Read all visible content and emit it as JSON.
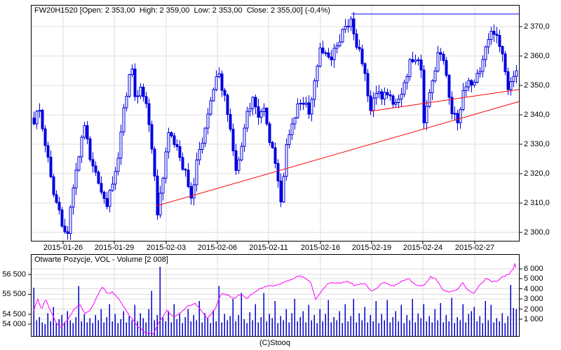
{
  "price_panel": {
    "title": "FW20H1520 [Open: 2 353,00  High: 2 359,00  Low: 2 353,00  Close: 2 355,00] (-0,4%)",
    "symbol": "FW20H1520",
    "open": "2 353,00",
    "high": "2 359,00",
    "low": "2 353,00",
    "close": "2 355,00",
    "change": "-0,4%"
  },
  "volume_panel": {
    "title": "Otwarte Pozycje, VOL - Volume [2 008]",
    "last_volume": "2 008"
  },
  "footer": {
    "copyright": "(C)Stooq"
  },
  "colors": {
    "candle": "#0000e0",
    "candle_up_fill": "#ffffff",
    "volume_bar": "#0000cc",
    "open_interest_line": "#ff00ff",
    "trendline": "#ff0000",
    "resistance": "#0000ff",
    "grid": "#dcdcdc",
    "border": "#000000",
    "background": "#ffffff"
  },
  "chart_data": [
    {
      "type": "candlestick",
      "title": "FW20H1520 intraday price",
      "legend_position": "none",
      "grid": true,
      "bar_count": 173,
      "ylim": [
        2297,
        2377
      ],
      "y_axis": {
        "side": "right",
        "labels": [
          "2 370,0",
          "2 360,0",
          "2 350,0",
          "2 340,0",
          "2 330,0",
          "2 320,0",
          "2 310,0",
          "2 300,0"
        ],
        "values": [
          2370,
          2360,
          2350,
          2340,
          2330,
          2320,
          2310,
          2300
        ]
      },
      "x_axis": {
        "labels": [
          "2015-01-26",
          "2015-01-29",
          "2015-02-03",
          "2015-02-06",
          "2015-02-11",
          "2015-02-16",
          "2015-02-19",
          "2015-02-24",
          "2015-02-27"
        ],
        "tick_bars": [
          10.5,
          28.75,
          47.25,
          65.5,
          83.75,
          102.25,
          120.5,
          138.75,
          157.25
        ]
      },
      "close_anchors": [
        [
          0,
          2337
        ],
        [
          2,
          2343
        ],
        [
          4,
          2330
        ],
        [
          6,
          2318
        ],
        [
          8,
          2310
        ],
        [
          10,
          2302
        ],
        [
          12,
          2299
        ],
        [
          14,
          2315
        ],
        [
          16,
          2326
        ],
        [
          18,
          2337
        ],
        [
          20,
          2325
        ],
        [
          22,
          2320
        ],
        [
          24,
          2312
        ],
        [
          26,
          2308
        ],
        [
          28,
          2318
        ],
        [
          30,
          2325
        ],
        [
          32,
          2343
        ],
        [
          34,
          2352
        ],
        [
          35,
          2355
        ],
        [
          36,
          2346
        ],
        [
          38,
          2350
        ],
        [
          40,
          2344
        ],
        [
          42,
          2330
        ],
        [
          44,
          2306
        ],
        [
          46,
          2320
        ],
        [
          48,
          2335
        ],
        [
          50,
          2330
        ],
        [
          52,
          2325
        ],
        [
          54,
          2320
        ],
        [
          56,
          2310
        ],
        [
          58,
          2325
        ],
        [
          60,
          2331
        ],
        [
          62,
          2340
        ],
        [
          64,
          2350
        ],
        [
          66,
          2353
        ],
        [
          68,
          2345
        ],
        [
          70,
          2335
        ],
        [
          72,
          2320
        ],
        [
          74,
          2328
        ],
        [
          76,
          2340
        ],
        [
          78,
          2347
        ],
        [
          80,
          2338
        ],
        [
          82,
          2341
        ],
        [
          84,
          2332
        ],
        [
          86,
          2325
        ],
        [
          88,
          2310
        ],
        [
          90,
          2330
        ],
        [
          92,
          2338
        ],
        [
          94,
          2342
        ],
        [
          96,
          2345
        ],
        [
          98,
          2340
        ],
        [
          100,
          2350
        ],
        [
          102,
          2362
        ],
        [
          104,
          2360
        ],
        [
          106,
          2358
        ],
        [
          108,
          2365
        ],
        [
          110,
          2368
        ],
        [
          112,
          2371
        ],
        [
          113,
          2372
        ],
        [
          114,
          2366
        ],
        [
          116,
          2362
        ],
        [
          118,
          2355
        ],
        [
          120,
          2341
        ],
        [
          122,
          2348
        ],
        [
          124,
          2345
        ],
        [
          126,
          2348
        ],
        [
          128,
          2344
        ],
        [
          130,
          2346
        ],
        [
          132,
          2350
        ],
        [
          134,
          2358
        ],
        [
          136,
          2360
        ],
        [
          138,
          2355
        ],
        [
          139,
          2337
        ],
        [
          141,
          2348
        ],
        [
          143,
          2355
        ],
        [
          144,
          2362
        ],
        [
          146,
          2358
        ],
        [
          147,
          2355
        ],
        [
          149,
          2340
        ],
        [
          151,
          2338
        ],
        [
          153,
          2348
        ],
        [
          155,
          2352
        ],
        [
          157,
          2350
        ],
        [
          159,
          2355
        ],
        [
          161,
          2362
        ],
        [
          163,
          2369
        ],
        [
          165,
          2366
        ],
        [
          167,
          2362
        ],
        [
          169,
          2350
        ],
        [
          171,
          2352
        ],
        [
          172,
          2355
        ]
      ],
      "annotations": {
        "resistance_line": {
          "price": 2374.3,
          "from_bar": 113.25,
          "to_bar": 173
        },
        "trendlines": [
          {
            "from_bar": 43.75,
            "from_price": 2309,
            "to_bar": 173,
            "to_price": 2344.5
          },
          {
            "from_bar": 120,
            "from_price": 2341.2,
            "to_bar": 173,
            "to_price": 2348.6
          }
        ]
      }
    },
    {
      "type": "bar+line",
      "title": "Otwarte Pozycje (open interest) and Volume",
      "grid": true,
      "bar_count": 173,
      "left_axis": {
        "series": "open_interest",
        "labels": [
          "56 500",
          "55 500",
          "54 500",
          "54 000"
        ],
        "values": [
          56500,
          55500,
          54500,
          54000
        ]
      },
      "right_axis": {
        "series": "volume",
        "labels": [
          "6 000",
          "5 000",
          "4 000",
          "3 000",
          "2 000",
          "1 000"
        ],
        "values": [
          6000,
          5000,
          4000,
          3000,
          2000,
          1000
        ]
      },
      "volume_hundreds": [
        41,
        9,
        12,
        7,
        5,
        16,
        8,
        22,
        6,
        10,
        14,
        7,
        18,
        9,
        6,
        12,
        43,
        8,
        15,
        7,
        11,
        6,
        14,
        9,
        20,
        7,
        12,
        25,
        8,
        15,
        6,
        10,
        18,
        7,
        13,
        9,
        24,
        8,
        16,
        11,
        7,
        20,
        38,
        9,
        14,
        62,
        12,
        8,
        18,
        7,
        25,
        10,
        15,
        6,
        12,
        20,
        8,
        14,
        9,
        28,
        7,
        16,
        11,
        6,
        19,
        8,
        43,
        7,
        15,
        9,
        13,
        30,
        8,
        14,
        36,
        10,
        6,
        17,
        9,
        25,
        7,
        12,
        36,
        8,
        15,
        11,
        28,
        6,
        13,
        9,
        20,
        7,
        16,
        30,
        8,
        12,
        18,
        7,
        24,
        9,
        14,
        6,
        20,
        8,
        15,
        29,
        7,
        12,
        9,
        18,
        6,
        25,
        8,
        13,
        30,
        7,
        16,
        9,
        22,
        7,
        14,
        8,
        28,
        6,
        15,
        9,
        29,
        7,
        12,
        18,
        8,
        24,
        6,
        14,
        9,
        30,
        7,
        16,
        11,
        25,
        8,
        13,
        7,
        20,
        9,
        26,
        7,
        14,
        8,
        31,
        6,
        12,
        9,
        25,
        7,
        15,
        18,
        22,
        8,
        13,
        6,
        28,
        9,
        24,
        7,
        11,
        8,
        16,
        6,
        13,
        44,
        21,
        20
      ],
      "open_interest_anchors": [
        [
          0,
          54700
        ],
        [
          1.5,
          55250
        ],
        [
          2.75,
          54750
        ],
        [
          4.25,
          55250
        ],
        [
          6.25,
          54600
        ],
        [
          8,
          54100
        ],
        [
          9.5,
          53830
        ],
        [
          11.75,
          54150
        ],
        [
          14,
          54650
        ],
        [
          16.25,
          55000
        ],
        [
          18.25,
          54550
        ],
        [
          20.25,
          54700
        ],
        [
          23,
          55500
        ],
        [
          24.5,
          55870
        ],
        [
          26.25,
          55550
        ],
        [
          28,
          55600
        ],
        [
          30,
          55350
        ],
        [
          32,
          54900
        ],
        [
          34.5,
          54350
        ],
        [
          37,
          53900
        ],
        [
          39.75,
          53600
        ],
        [
          42.5,
          53480
        ],
        [
          45,
          54150
        ],
        [
          47.5,
          54700
        ],
        [
          50,
          54350
        ],
        [
          52.5,
          54600
        ],
        [
          55,
          54900
        ],
        [
          57.5,
          55050
        ],
        [
          60,
          54650
        ],
        [
          62,
          54300
        ],
        [
          64.5,
          54700
        ],
        [
          67,
          55550
        ],
        [
          69.5,
          55450
        ],
        [
          71.25,
          55270
        ],
        [
          73.5,
          55500
        ],
        [
          76,
          55300
        ],
        [
          78.5,
          55600
        ],
        [
          81,
          55800
        ],
        [
          83.5,
          55950
        ],
        [
          86,
          55940
        ],
        [
          88.5,
          56050
        ],
        [
          91,
          56200
        ],
        [
          93,
          56300
        ],
        [
          94.75,
          56450
        ],
        [
          96.75,
          56300
        ],
        [
          98.75,
          56100
        ],
        [
          100.5,
          55250
        ],
        [
          102.5,
          55600
        ],
        [
          104.5,
          56000
        ],
        [
          107,
          56100
        ],
        [
          109.5,
          56050
        ],
        [
          112,
          56150
        ],
        [
          114.5,
          55950
        ],
        [
          116,
          56000
        ],
        [
          118,
          56050
        ],
        [
          120.5,
          55650
        ],
        [
          122.5,
          55850
        ],
        [
          124.5,
          56100
        ],
        [
          126.5,
          56000
        ],
        [
          128.5,
          55900
        ],
        [
          131,
          56150
        ],
        [
          133.5,
          56300
        ],
        [
          135.5,
          56050
        ],
        [
          137.5,
          55900
        ],
        [
          139.5,
          56000
        ],
        [
          141.5,
          56400
        ],
        [
          143.5,
          56250
        ],
        [
          146,
          55700
        ],
        [
          148.5,
          55600
        ],
        [
          151,
          55750
        ],
        [
          153,
          56050
        ],
        [
          155,
          55700
        ],
        [
          157,
          55550
        ],
        [
          159,
          55950
        ],
        [
          161.5,
          56300
        ],
        [
          163.5,
          56100
        ],
        [
          165.5,
          56200
        ],
        [
          167.5,
          56400
        ],
        [
          169.5,
          56500
        ],
        [
          171,
          56800
        ],
        [
          171.75,
          57100
        ],
        [
          172,
          56800
        ]
      ]
    }
  ]
}
